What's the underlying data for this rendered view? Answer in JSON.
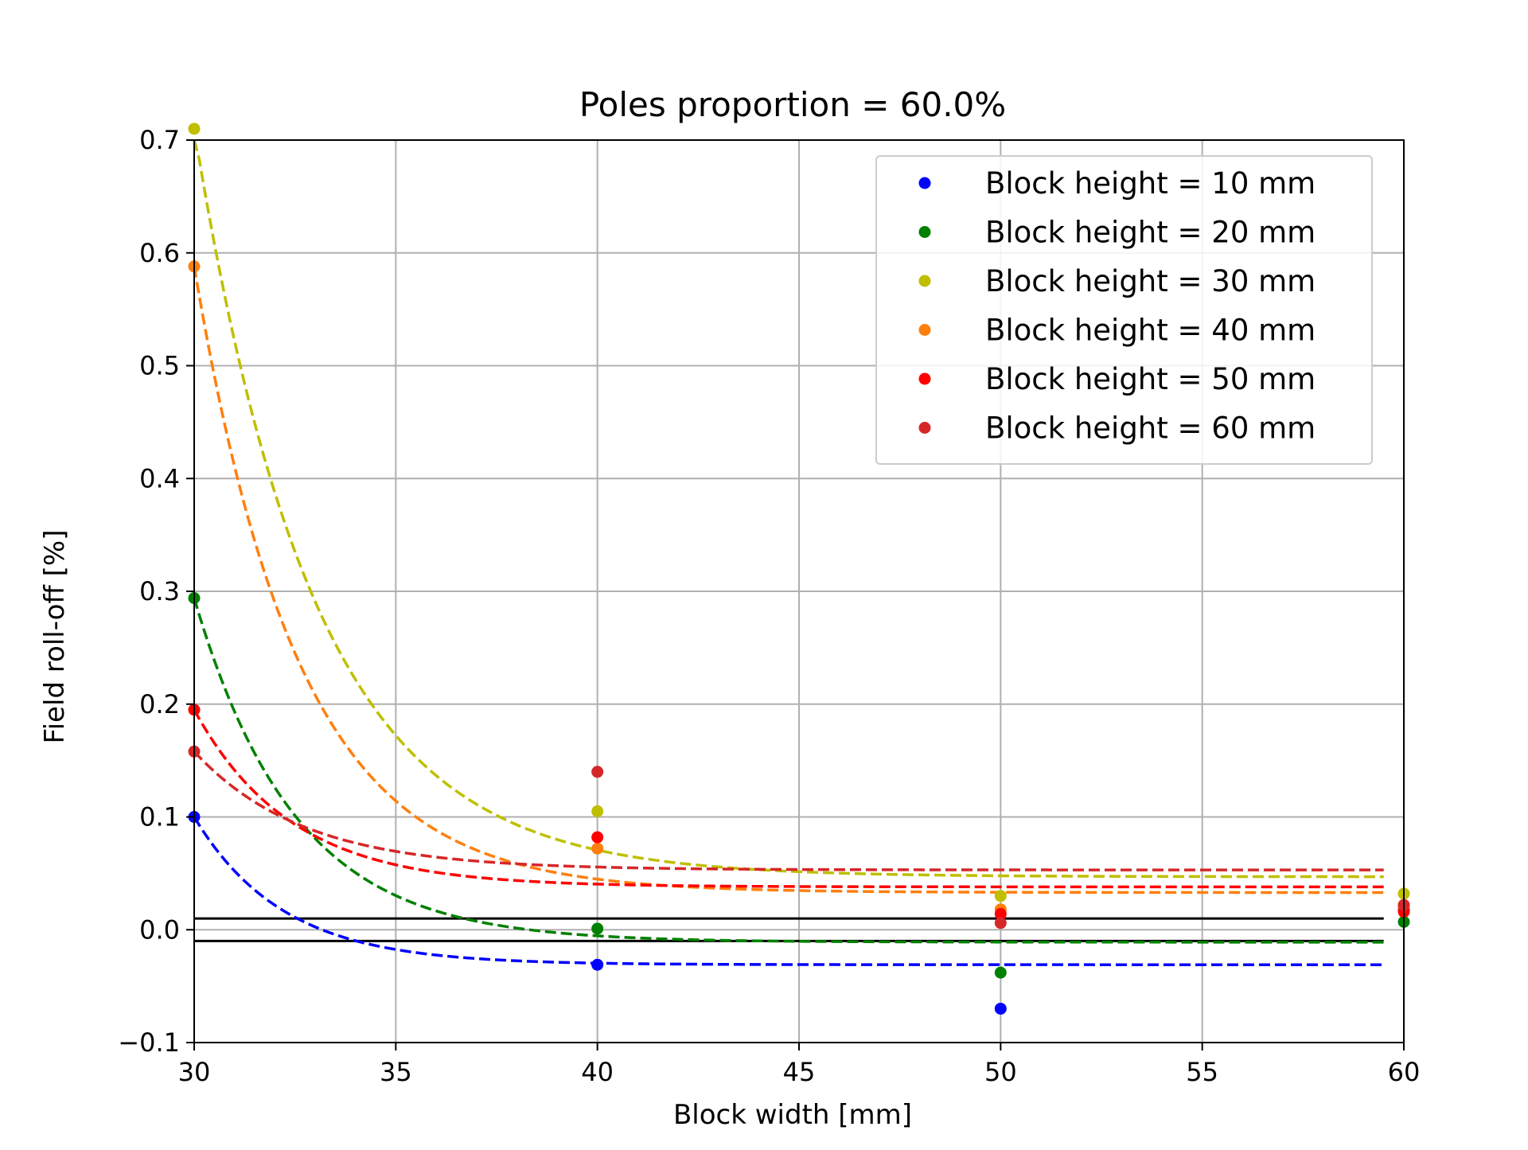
{
  "chart_data": {
    "type": "scatter",
    "title": "Poles proportion = 60.0%",
    "xlabel": "Block width [mm]",
    "ylabel": "Field roll-off [%]",
    "xlim": [
      30,
      60
    ],
    "ylim": [
      -0.1,
      0.7
    ],
    "xticks": [
      30,
      35,
      40,
      45,
      50,
      55,
      60
    ],
    "xtick_labels": [
      "30",
      "35",
      "40",
      "45",
      "50",
      "55",
      "60"
    ],
    "yticks": [
      -0.1,
      0.0,
      0.1,
      0.2,
      0.3,
      0.4,
      0.5,
      0.6,
      0.7
    ],
    "ytick_labels": [
      "−0.1",
      "0.0",
      "0.1",
      "0.2",
      "0.3",
      "0.4",
      "0.5",
      "0.6",
      "0.7"
    ],
    "grid": true,
    "legend_position": "top-right",
    "reference_lines": [
      {
        "y": 0.01,
        "x_range": [
          30,
          59.5
        ],
        "color": "#000000"
      },
      {
        "y": -0.01,
        "x_range": [
          30,
          59.5
        ],
        "color": "#000000"
      }
    ],
    "series": [
      {
        "name": "Block height = 10 mm",
        "color": "#0000ff",
        "x": [
          30,
          40,
          50,
          60
        ],
        "y": [
          0.1,
          -0.031,
          -0.07,
          0.018
        ],
        "fit": {
          "model": "exponential_decay",
          "start": 0.1,
          "asymptote": -0.031,
          "decay_mm": 2.2,
          "x_range": [
            30,
            59.5
          ]
        }
      },
      {
        "name": "Block height = 20 mm",
        "color": "#008000",
        "x": [
          30,
          40,
          50,
          60
        ],
        "y": [
          0.294,
          0.001,
          -0.038,
          0.007
        ],
        "fit": {
          "model": "exponential_decay",
          "start": 0.294,
          "asymptote": -0.011,
          "decay_mm": 2.5,
          "x_range": [
            30,
            59.5
          ]
        }
      },
      {
        "name": "Block height = 30 mm",
        "color": "#bfbf00",
        "x": [
          30,
          40,
          50,
          60
        ],
        "y": [
          0.71,
          0.105,
          0.03,
          0.032
        ],
        "fit": {
          "model": "exponential_decay",
          "start": 0.71,
          "asymptote": 0.047,
          "decay_mm": 3.0,
          "x_range": [
            30,
            59.5
          ]
        }
      },
      {
        "name": "Block height = 40 mm",
        "color": "#ff7f0e",
        "x": [
          30,
          40,
          50,
          60
        ],
        "y": [
          0.588,
          0.072,
          0.018,
          0.02
        ],
        "fit": {
          "model": "exponential_decay",
          "start": 0.588,
          "asymptote": 0.033,
          "decay_mm": 2.6,
          "x_range": [
            30,
            59.5
          ]
        }
      },
      {
        "name": "Block height = 50 mm",
        "color": "#ff0000",
        "x": [
          30,
          40,
          50,
          60
        ],
        "y": [
          0.195,
          0.082,
          0.014,
          0.016
        ],
        "fit": {
          "model": "exponential_decay",
          "start": 0.195,
          "asymptote": 0.038,
          "decay_mm": 2.4,
          "x_range": [
            30,
            59.5
          ]
        }
      },
      {
        "name": "Block height = 60 mm",
        "color": "#d62728",
        "x": [
          30,
          40,
          50,
          60
        ],
        "y": [
          0.158,
          0.14,
          0.006,
          0.022
        ],
        "fit": {
          "model": "exponential_decay",
          "start": 0.158,
          "asymptote": 0.053,
          "decay_mm": 2.7,
          "x_range": [
            30,
            59.5
          ]
        }
      }
    ]
  }
}
